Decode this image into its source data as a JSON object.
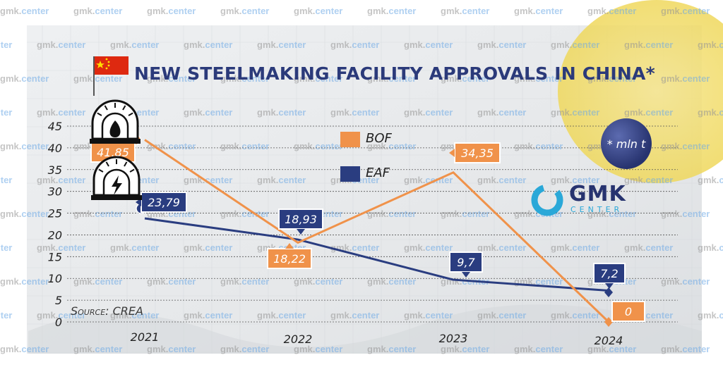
{
  "header": {
    "title": "NEW STEELMAKING FACILITY APPROVALS IN CHINA*",
    "unit_note": "* mln t",
    "source": "Source: CREA",
    "logo_main": "GMK",
    "logo_sub": "CENTER",
    "watermark_a": "gmk.",
    "watermark_b": "center"
  },
  "colors": {
    "bof": "#f0924a",
    "eaf": "#2a3d80",
    "title": "#2b3a7a",
    "flag": "#de2910",
    "flag_star": "#ffde00"
  },
  "chart_data": {
    "type": "line",
    "title": "NEW STEELMAKING FACILITY APPROVALS IN CHINA*",
    "x": [
      "2021",
      "2022",
      "2023",
      "2024"
    ],
    "ylim": [
      0,
      45
    ],
    "yticks": [
      "0",
      "5",
      "10",
      "15",
      "20",
      "25",
      "30",
      "35",
      "40",
      "45"
    ],
    "grid": true,
    "legend_position": "center-left",
    "series": [
      {
        "name": "BOF",
        "values": [
          41.85,
          18.22,
          34.35,
          0
        ],
        "labels": [
          "41,85",
          "18,22",
          "34,35",
          "0"
        ]
      },
      {
        "name": "EAF",
        "values": [
          23.79,
          18.93,
          9.7,
          7.2
        ],
        "labels": [
          "23,79",
          "18,93",
          "9,7",
          "7,2"
        ]
      }
    ]
  }
}
